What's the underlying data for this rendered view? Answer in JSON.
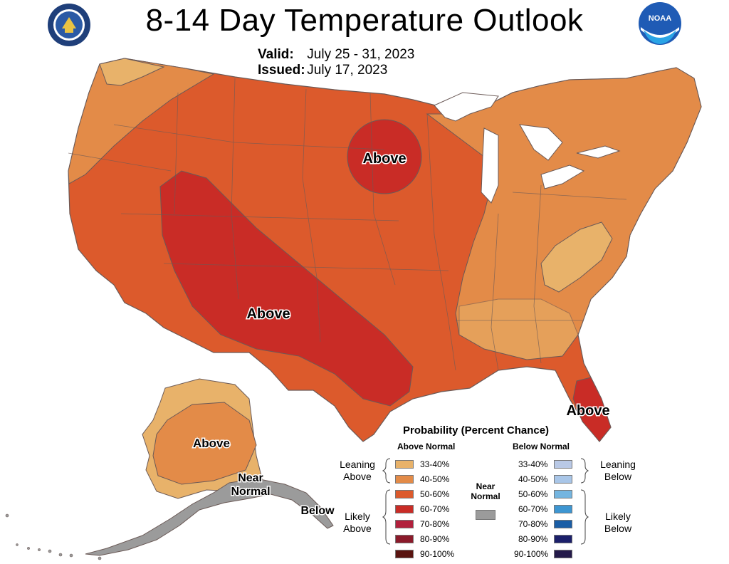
{
  "header": {
    "title": "8-14 Day Temperature Outlook",
    "valid_label": "Valid:",
    "valid_value": "July 25 - 31, 2023",
    "issued_label": "Issued:",
    "issued_value": "July 17, 2023"
  },
  "logos": {
    "left": "doc-seal",
    "right_text": "NOAA"
  },
  "map_labels": {
    "above_dakota": "Above",
    "above_southwest": "Above",
    "above_florida": "Above",
    "above_alaska": "Above",
    "near_normal_line1": "Near",
    "near_normal_line2": "Normal",
    "below_alaska": "Below"
  },
  "colors": {
    "above_33_40": "#e8b26a",
    "above_40_50": "#e38b48",
    "above_50_60": "#dc5a2c",
    "above_60_70": "#c92c26",
    "above_70_80": "#b2213c",
    "above_80_90": "#8b1a2a",
    "above_90_100": "#5a1410",
    "near_normal": "#9b9b9b",
    "below_33_40": "#b9c9e6",
    "below_40_50": "#a9c6e8",
    "below_50_60": "#74b5e0",
    "below_60_70": "#3d96d2",
    "below_70_80": "#1a5ea6",
    "below_80_90": "#1b1f6a",
    "below_90_100": "#241a4a",
    "great_lakes": "#ffffff",
    "boundary": "#6b5a57"
  },
  "legend": {
    "title": "Probability (Percent Chance)",
    "above_header": "Above Normal",
    "below_header": "Below Normal",
    "near_header_line1": "Near",
    "near_header_line2": "Normal",
    "leaning_above_line1": "Leaning",
    "leaning_above_line2": "Above",
    "likely_above_line1": "Likely",
    "likely_above_line2": "Above",
    "leaning_below_line1": "Leaning",
    "leaning_below_line2": "Below",
    "likely_below_line1": "Likely",
    "likely_below_line2": "Below",
    "ranges": [
      "33-40%",
      "40-50%",
      "50-60%",
      "60-70%",
      "70-80%",
      "80-90%",
      "90-100%"
    ]
  }
}
